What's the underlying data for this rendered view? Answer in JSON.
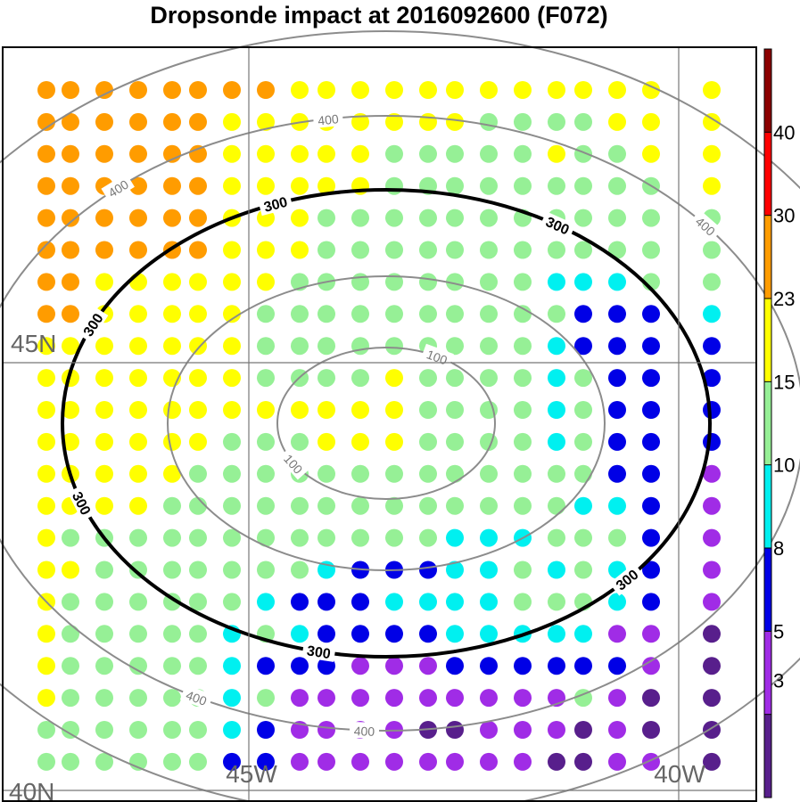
{
  "title": "Dropsonde impact at 2016092600 (F072)",
  "map": {
    "grid_labels": [
      {
        "text": "45N",
        "kind": "lat"
      },
      {
        "text": "40N",
        "kind": "lat"
      },
      {
        "text": "45W",
        "kind": "lon"
      },
      {
        "text": "40W",
        "kind": "lon"
      }
    ],
    "contours": [
      {
        "level": 100,
        "labels": [
          "100",
          "100"
        ],
        "color": "#8c8c8c",
        "style": "thin"
      },
      {
        "level": 200,
        "labels": [],
        "color": "#8c8c8c",
        "style": "thin"
      },
      {
        "level": 300,
        "labels": [
          "300",
          "300",
          "300",
          "300",
          "300",
          "300"
        ],
        "color": "#000000",
        "style": "thick"
      },
      {
        "level": 400,
        "labels": [
          "400",
          "400",
          "400",
          "400",
          "400"
        ],
        "color": "#8c8c8c",
        "style": "thin"
      }
    ]
  },
  "colorbar": {
    "ticks": [
      "3",
      "5",
      "8",
      "10",
      "15",
      "23",
      "30",
      "40"
    ],
    "colors": [
      "#581f8c",
      "#a02ce6",
      "#0000e6",
      "#00f0f0",
      "#96f096",
      "#ffff00",
      "#ff9c00",
      "#ff0000",
      "#8c0000"
    ]
  },
  "chart_data": {
    "type": "scatter",
    "title": "Dropsonde impact at 2016092600 (F072)",
    "colorbar_levels": [
      3,
      5,
      8,
      10,
      15,
      23,
      30,
      40
    ],
    "category_key": "A: >40 (dark red, not present), O: 23-30, Y: 15-23, G: 10-15, C: 8-10, B: 5-8, P: 3-5, D: <3",
    "grid_rows": [
      "OOOOOOOOYYYYYYYYYYYYY",
      "OOOOOOYYYYYYYYGGGGYYY",
      "OOOOOOYYYYYGGGGGYGGYY",
      "OOOOOOYYYYYGGGGGGGGGY",
      "OOOOOOYYYGGGGGGGGGGGG",
      "OOOOOOYYYGGGGGGGGGGGG",
      "OOYYYYYYGGGGGGGGCCCGG",
      "OOYYYYYGGGGGGGGGGBBBC",
      "YYYYYYYGGGGGGGGGCBBBB",
      "YYYYYYYGGGGYGGGGCGBBB",
      "YYYYYYYYYYYYGGGGCGBBB",
      "YYYYYYGGGYYYGGGGCGBBB",
      "YYYYYGGGGGGGGGGGGGBBP",
      "YYYYGGGGGGGGGGGGGCCBP",
      "YGGGGGGGGGGGGCCCGGGBP",
      "YYGGGGGGGCBBBCCGCGCBP",
      "YGGGGGGCBBBCCCCGGGCBP",
      "YGGGGGCGCBBBBCCCCCPPD",
      "YGGGGGCBBBPPPBBBBBBPD",
      "YGGGGGCGPPPPPPPPPGPDD",
      "GGGGGGCBPPPPDDPPPDPDD",
      "GGGGGGBBPPPPPPPPDDPPD"
    ]
  }
}
